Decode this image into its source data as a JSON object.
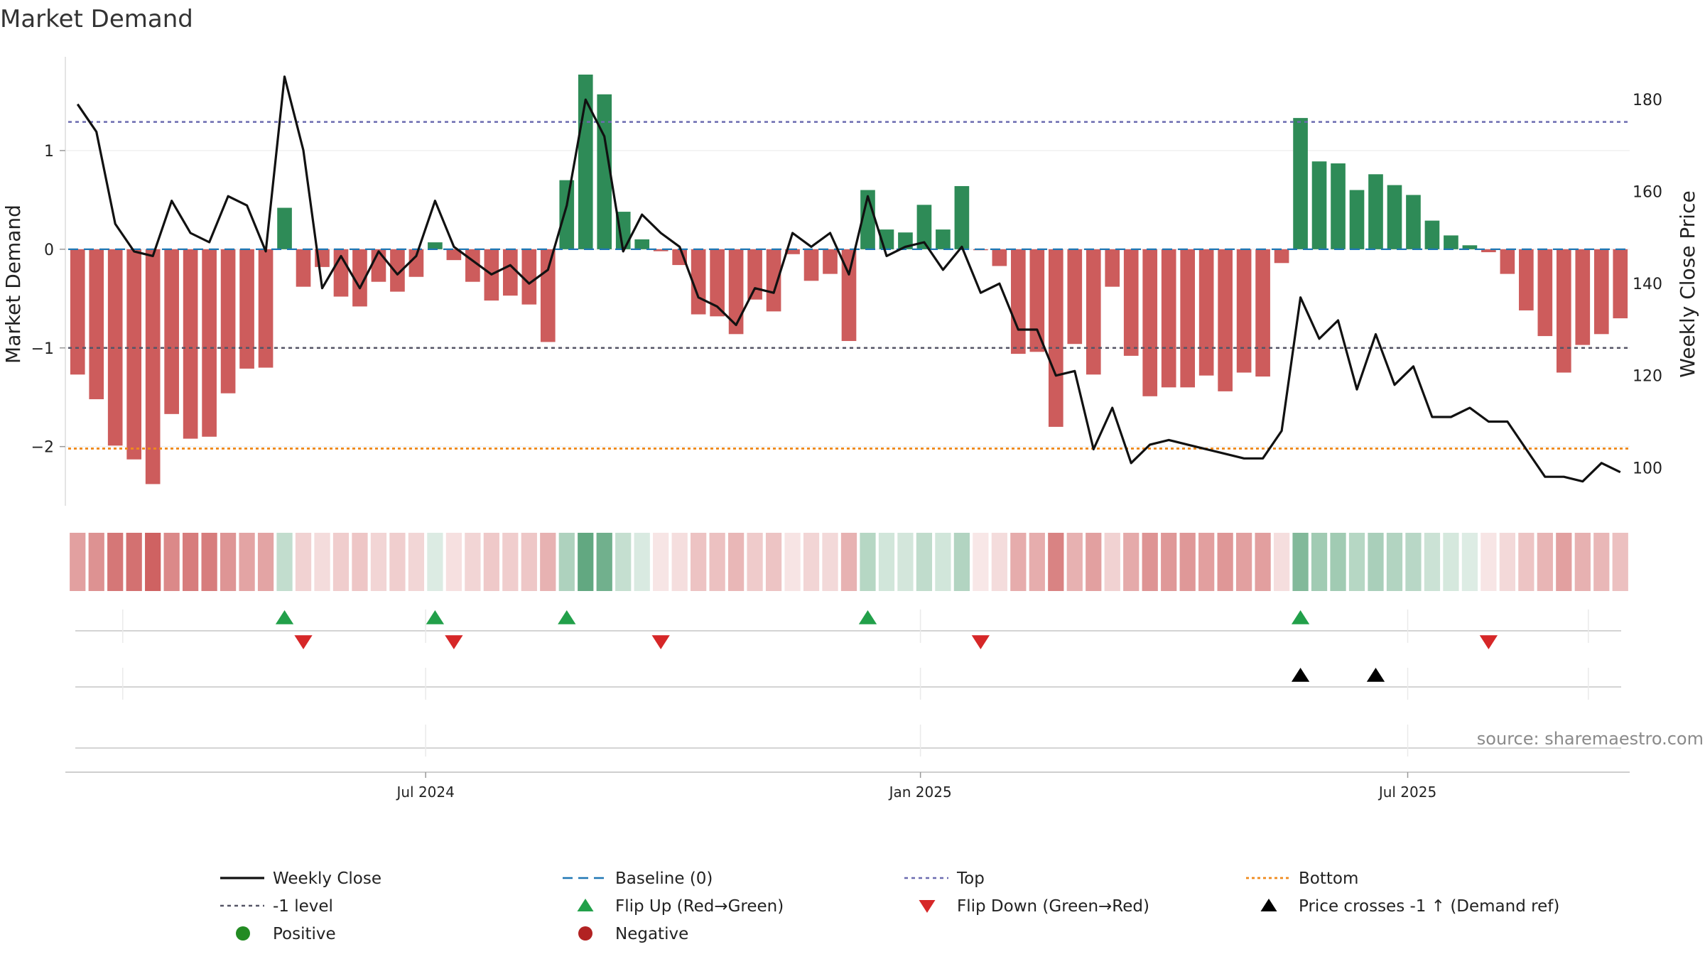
{
  "chart_data": {
    "type": "bar",
    "title": "Market Demand",
    "ylabel": "Market Demand",
    "y2label": "Weekly Close Price",
    "ylim": [
      -2.6,
      1.95
    ],
    "y2lim": [
      91.7,
      189.3
    ],
    "yticks": [
      1,
      0,
      -1,
      -2
    ],
    "ytick_labels": [
      "1",
      "0",
      "−1",
      "−2"
    ],
    "y2ticks": [
      180,
      160,
      140,
      120,
      100
    ],
    "y2tick_labels": [
      "180",
      "160",
      "140",
      "120",
      "100"
    ],
    "xticks": [
      {
        "index": 18.5,
        "label": "Jul 2024"
      },
      {
        "index": 44.8,
        "label": "Jan 2025"
      },
      {
        "index": 70.7,
        "label": "Jul 2025"
      }
    ],
    "demand": [
      -1.27,
      -1.52,
      -1.99,
      -2.13,
      -2.38,
      -1.67,
      -1.92,
      -1.9,
      -1.46,
      -1.21,
      -1.2,
      0.42,
      -0.38,
      -0.18,
      -0.48,
      -0.58,
      -0.33,
      -0.43,
      -0.28,
      0.07,
      -0.11,
      -0.33,
      -0.52,
      -0.47,
      -0.56,
      -0.94,
      0.7,
      1.77,
      1.57,
      0.38,
      0.1,
      -0.02,
      -0.16,
      -0.66,
      -0.68,
      -0.86,
      -0.51,
      -0.63,
      -0.05,
      -0.32,
      -0.25,
      -0.93,
      0.6,
      0.2,
      0.17,
      0.45,
      0.2,
      0.64,
      -0.01,
      -0.17,
      -1.06,
      -1.04,
      -1.8,
      -0.96,
      -1.27,
      -0.38,
      -1.08,
      -1.49,
      -1.4,
      -1.4,
      -1.28,
      -1.44,
      -1.25,
      -1.29,
      -0.14,
      1.33,
      0.89,
      0.87,
      0.6,
      0.76,
      0.65,
      0.55,
      0.29,
      0.14,
      0.04,
      -0.03,
      -0.25,
      -0.62,
      -0.88,
      -1.25,
      -0.97,
      -0.86,
      -0.7
    ],
    "series": [
      {
        "name": "Weekly Close",
        "values": [
          179,
          173,
          153,
          147,
          146,
          158,
          151,
          149,
          159,
          157,
          147,
          185,
          169,
          139,
          146,
          139,
          147,
          142,
          146,
          158,
          148,
          145,
          142,
          144,
          140,
          143,
          157,
          180,
          172,
          147,
          155,
          151,
          148,
          137,
          135,
          131,
          139,
          138,
          151,
          148,
          151,
          142,
          159,
          146,
          148,
          149,
          143,
          148,
          138,
          140,
          130,
          130,
          120,
          121,
          104,
          113,
          101,
          105,
          106,
          105,
          104,
          103,
          102,
          102,
          108,
          137,
          128,
          132,
          117,
          129,
          118,
          122,
          111,
          111,
          113,
          110,
          110,
          104,
          98,
          98,
          97,
          101,
          99
        ]
      },
      {
        "name": "Market Demand",
        "values": "demand"
      }
    ],
    "flip_up": [
      11,
      19,
      26,
      42,
      65
    ],
    "flip_down": [
      12,
      20,
      31,
      48,
      75
    ],
    "price_cross": [
      65,
      69
    ],
    "reference_lines": [
      {
        "name": "Top",
        "value": 1.29
      },
      {
        "name": "-1 level",
        "value": -1
      },
      {
        "name": "Bottom",
        "value": -2.02
      },
      {
        "name": "Baseline (0)",
        "value": 0
      }
    ],
    "colors": {
      "positive": "#2e8b57",
      "negative": "#cd5c5c",
      "price": "#111111",
      "top": "#6b6bb0",
      "level": "#555566",
      "bottom": "#f08a1c",
      "baseline": "#1f77b4",
      "flip_up": "#22a04a",
      "flip_down": "#d62728",
      "cross": "#000000",
      "legend_positive": "#228b22",
      "legend_negative": "#b22222"
    },
    "legend": [
      {
        "key": "close",
        "label": "Weekly Close"
      },
      {
        "key": "baseline",
        "label": "Baseline (0)"
      },
      {
        "key": "top",
        "label": "Top"
      },
      {
        "key": "bottom",
        "label": "Bottom"
      },
      {
        "key": "level",
        "label": "-1 level"
      },
      {
        "key": "flipup",
        "label": "Flip Up (Red→Green)"
      },
      {
        "key": "flipdown",
        "label": "Flip Down (Green→Red)"
      },
      {
        "key": "cross",
        "label": "Price crosses -1 ↑ (Demand ref)"
      },
      {
        "key": "positive",
        "label": "Positive"
      },
      {
        "key": "negative",
        "label": "Negative"
      }
    ],
    "source": "source: sharemaestro.com"
  }
}
